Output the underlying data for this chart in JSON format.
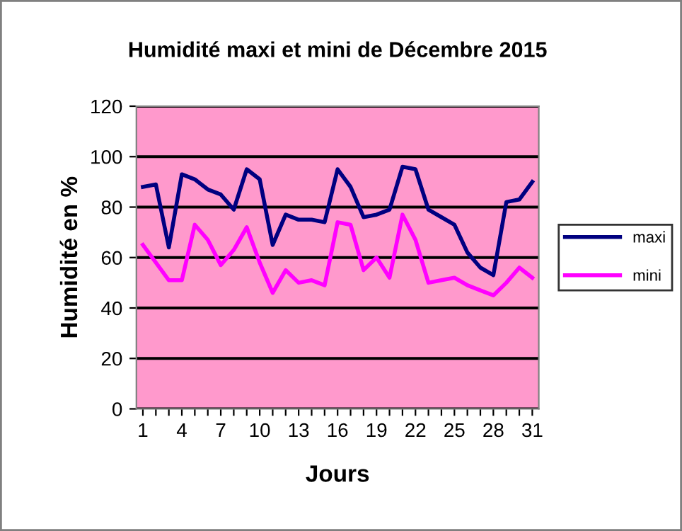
{
  "chart_data": {
    "type": "line",
    "title": "Humidité maxi et mini de Décembre 2015",
    "xlabel": "Jours",
    "ylabel": "Humidité en %",
    "categories": [
      "1",
      null,
      null,
      "4",
      null,
      null,
      "7",
      null,
      null,
      "10",
      null,
      null,
      "13",
      null,
      null,
      "16",
      null,
      null,
      "19",
      null,
      null,
      "22",
      null,
      null,
      "25",
      null,
      null,
      "28",
      null,
      null,
      "31"
    ],
    "series": [
      {
        "name": "maxi",
        "color": "#000080",
        "values": [
          88,
          89,
          64,
          93,
          91,
          87,
          85,
          79,
          95,
          91,
          65,
          77,
          75,
          75,
          74,
          95,
          88,
          76,
          77,
          79,
          96,
          95,
          79,
          76,
          73,
          62,
          56,
          53,
          82,
          83,
          90
        ]
      },
      {
        "name": "mini",
        "color": "#ff00ff",
        "values": [
          65,
          58,
          51,
          51,
          73,
          67,
          57,
          63,
          72,
          58,
          46,
          55,
          50,
          51,
          49,
          74,
          73,
          55,
          60,
          52,
          77,
          67,
          50,
          51,
          52,
          49,
          47,
          45,
          50,
          56,
          52
        ]
      }
    ],
    "ylim": [
      0,
      120
    ],
    "yticks": [
      0,
      20,
      40,
      60,
      80,
      100,
      120
    ],
    "grid": "y",
    "legend": "right",
    "marker": "none",
    "line_style": "solid"
  }
}
